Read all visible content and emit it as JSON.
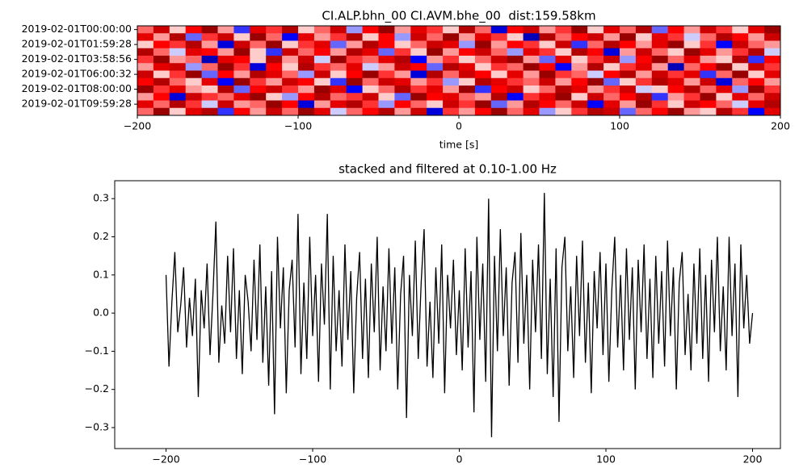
{
  "chart_data": [
    {
      "type": "heatmap",
      "title": "CI.ALP.bhn_00 CI.AVM.bhe_00  dist:159.58km",
      "xlabel": "time [s]",
      "colormap": "seismic",
      "clim": [
        -1,
        1
      ],
      "xlim": [
        -200,
        200
      ],
      "xticks": [
        {
          "value": -200,
          "label": "−200"
        },
        {
          "value": -100,
          "label": "−100"
        },
        0,
        100,
        200
      ],
      "categories": [
        "2019-02-01T00:00:00",
        null,
        "2019-02-01T01:59:28",
        null,
        "2019-02-01T03:58:56",
        null,
        "2019-02-01T06:00:32",
        null,
        "2019-02-01T08:00:00",
        null,
        "2019-02-01T09:59:28",
        null
      ],
      "matrix": [
        [
          0.3,
          0.7,
          0.1,
          0.5,
          0.9,
          0.2,
          -0.4,
          0.6,
          0.4,
          0.8,
          0.1,
          0.3,
          0.7,
          -0.2,
          0.5,
          0.9,
          0.2,
          0.6,
          0.4,
          0.1,
          0.8,
          0.3,
          -0.6,
          0.5,
          0.7,
          0.2,
          0.4,
          0.9,
          0.1,
          0.6,
          0.3,
          0.8,
          -0.3,
          0.5,
          0.2,
          0.7,
          0.4,
          0.1,
          0.6,
          0.9
        ],
        [
          0.6,
          0.2,
          0.8,
          -0.3,
          0.4,
          0.7,
          0.1,
          0.9,
          0.3,
          -0.5,
          0.6,
          0.2,
          0.4,
          0.8,
          0.1,
          0.5,
          -0.2,
          0.7,
          0.3,
          0.9,
          0.2,
          0.6,
          0.4,
          0.1,
          -0.7,
          0.8,
          0.3,
          0.5,
          0.7,
          0.2,
          0.9,
          0.1,
          0.6,
          0.4,
          -0.1,
          0.3,
          0.8,
          0.5,
          0.2,
          0.7
        ],
        [
          0.1,
          0.5,
          0.4,
          0.8,
          0.2,
          -0.6,
          0.7,
          0.3,
          0.9,
          0.1,
          0.4,
          0.6,
          -0.3,
          0.2,
          0.8,
          0.5,
          0.1,
          0.3,
          0.7,
          0.6,
          -0.2,
          0.9,
          0.2,
          0.5,
          0.4,
          0.1,
          0.7,
          -0.4,
          0.3,
          0.8,
          0.5,
          0.2,
          0.6,
          0.9,
          0.1,
          0.4,
          -0.5,
          0.7,
          0.3,
          0.2
        ],
        [
          0.8,
          0.3,
          -0.1,
          0.6,
          0.5,
          0.2,
          0.9,
          0.1,
          -0.4,
          0.7,
          0.3,
          0.5,
          0.2,
          0.8,
          0.6,
          -0.3,
          0.4,
          0.1,
          0.9,
          0.2,
          0.5,
          0.7,
          0.3,
          -0.2,
          0.6,
          0.4,
          0.1,
          0.8,
          0.5,
          -0.6,
          0.2,
          0.7,
          0.3,
          0.1,
          0.9,
          0.6,
          0.2,
          0.4,
          0.8,
          -0.1
        ],
        [
          0.4,
          0.9,
          0.2,
          0.3,
          -0.7,
          0.6,
          0.5,
          0.1,
          0.8,
          0.2,
          0.7,
          -0.1,
          0.9,
          0.4,
          0.3,
          0.6,
          0.8,
          -0.5,
          0.2,
          0.4,
          0.1,
          0.3,
          0.7,
          0.9,
          0.2,
          -0.3,
          0.6,
          0.1,
          0.4,
          0.7,
          -0.2,
          0.5,
          0.9,
          0.3,
          0.6,
          0.2,
          0.1,
          0.8,
          -0.4,
          0.5
        ],
        [
          0.2,
          0.6,
          0.7,
          -0.2,
          0.3,
          0.9,
          0.4,
          -0.6,
          0.5,
          0.1,
          0.8,
          0.4,
          0.3,
          0.6,
          -0.1,
          0.2,
          0.7,
          0.5,
          -0.3,
          0.8,
          0.6,
          0.1,
          0.4,
          0.3,
          0.9,
          0.5,
          -0.5,
          0.2,
          0.8,
          0.1,
          0.4,
          0.6,
          0.2,
          -0.7,
          0.3,
          0.5,
          0.9,
          0.1,
          0.7,
          0.4
        ],
        [
          0.7,
          0.1,
          0.4,
          0.9,
          -0.3,
          0.5,
          0.2,
          0.8,
          0.6,
          0.3,
          -0.2,
          0.7,
          0.1,
          0.5,
          0.9,
          0.4,
          0.2,
          -0.6,
          0.8,
          0.3,
          0.7,
          0.5,
          0.1,
          0.6,
          0.2,
          0.9,
          0.4,
          0.3,
          -0.1,
          0.5,
          0.8,
          0.2,
          0.7,
          0.4,
          0.6,
          -0.4,
          0.3,
          0.9,
          0.1,
          0.6
        ],
        [
          0.5,
          0.8,
          0.3,
          0.1,
          0.6,
          -0.5,
          0.9,
          0.4,
          0.2,
          0.7,
          0.5,
          0.1,
          -0.4,
          0.9,
          0.3,
          0.7,
          0.6,
          0.2,
          0.4,
          -0.2,
          0.1,
          0.8,
          0.6,
          0.4,
          0.3,
          0.7,
          0.2,
          0.5,
          0.9,
          -0.3,
          0.1,
          0.4,
          0.8,
          0.6,
          0.2,
          0.7,
          -0.6,
          0.3,
          0.5,
          0.2
        ],
        [
          0.9,
          0.4,
          0.6,
          0.2,
          0.1,
          0.8,
          -0.3,
          0.5,
          0.7,
          0.4,
          0.2,
          0.9,
          0.6,
          -0.5,
          0.1,
          0.3,
          0.8,
          0.4,
          0.6,
          0.2,
          0.9,
          -0.4,
          0.5,
          0.7,
          0.1,
          0.3,
          0.8,
          0.6,
          0.2,
          0.4,
          0.7,
          -0.1,
          0.1,
          0.5,
          0.8,
          0.3,
          0.6,
          -0.2,
          0.9,
          0.4
        ],
        [
          0.2,
          0.5,
          -0.6,
          0.7,
          0.4,
          0.3,
          0.6,
          0.9,
          0.1,
          -0.2,
          0.5,
          0.8,
          0.3,
          0.4,
          0.7,
          0.1,
          -0.3,
          0.9,
          0.5,
          0.6,
          0.3,
          0.2,
          0.8,
          -0.5,
          0.4,
          0.6,
          0.9,
          0.1,
          0.7,
          0.3,
          0.5,
          0.8,
          -0.4,
          0.2,
          0.4,
          0.9,
          0.1,
          0.6,
          0.3,
          0.7
        ],
        [
          0.6,
          0.3,
          0.8,
          0.4,
          -0.1,
          0.7,
          0.2,
          0.3,
          0.9,
          0.5,
          -0.6,
          0.2,
          0.6,
          0.8,
          0.4,
          -0.2,
          0.5,
          0.3,
          0.1,
          0.7,
          0.4,
          0.9,
          -0.3,
          0.2,
          0.8,
          0.5,
          0.3,
          0.7,
          -0.5,
          0.6,
          0.2,
          0.9,
          0.4,
          0.1,
          0.7,
          0.5,
          0.3,
          -0.1,
          0.6,
          0.8
        ],
        [
          0.3,
          0.9,
          0.1,
          0.6,
          0.8,
          -0.4,
          0.5,
          0.2,
          0.7,
          0.3,
          0.9,
          0.6,
          -0.1,
          0.3,
          0.5,
          0.8,
          0.2,
          0.7,
          -0.6,
          0.4,
          0.2,
          0.5,
          0.9,
          0.3,
          0.6,
          -0.2,
          0.1,
          0.4,
          0.8,
          0.7,
          -0.3,
          0.3,
          0.5,
          0.9,
          0.2,
          0.1,
          0.8,
          0.4,
          -0.5,
          0.6
        ]
      ]
    },
    {
      "type": "line",
      "title": "stacked and filtered at 0.10-1.00 Hz",
      "color": "#000000",
      "xlim": [
        -235,
        219
      ],
      "ylim": [
        -0.355,
        0.347
      ],
      "xticks": [
        {
          "value": -200,
          "label": "−200"
        },
        {
          "value": -100,
          "label": "−100"
        },
        0,
        100,
        200
      ],
      "yticks": [
        {
          "value": -0.3,
          "label": "−0.3"
        },
        {
          "value": -0.2,
          "label": "−0.2"
        },
        {
          "value": -0.1,
          "label": "−0.1"
        },
        {
          "value": 0,
          "label": "0.0"
        },
        0.1,
        0.2,
        0.3
      ],
      "x": [
        -200,
        -198,
        -196,
        -194,
        -192,
        -190,
        -188,
        -186,
        -184,
        -182,
        -180,
        -178,
        -176,
        -174,
        -172,
        -170,
        -168,
        -166,
        -164,
        -162,
        -160,
        -158,
        -156,
        -154,
        -152,
        -150,
        -148,
        -146,
        -144,
        -142,
        -140,
        -138,
        -136,
        -134,
        -132,
        -130,
        -128,
        -126,
        -124,
        -122,
        -120,
        -118,
        -116,
        -114,
        -112,
        -110,
        -108,
        -106,
        -104,
        -102,
        -100,
        -98,
        -96,
        -94,
        -92,
        -90,
        -88,
        -86,
        -84,
        -82,
        -80,
        -78,
        -76,
        -74,
        -72,
        -70,
        -68,
        -66,
        -64,
        -62,
        -60,
        -58,
        -56,
        -54,
        -52,
        -50,
        -48,
        -46,
        -44,
        -42,
        -40,
        -38,
        -36,
        -34,
        -32,
        -30,
        -28,
        -26,
        -24,
        -22,
        -20,
        -18,
        -16,
        -14,
        -12,
        -10,
        -8,
        -6,
        -4,
        -2,
        0,
        2,
        4,
        6,
        8,
        10,
        12,
        14,
        16,
        18,
        20,
        22,
        24,
        26,
        28,
        30,
        32,
        34,
        36,
        38,
        40,
        42,
        44,
        46,
        48,
        50,
        52,
        54,
        56,
        58,
        60,
        62,
        64,
        66,
        68,
        70,
        72,
        74,
        76,
        78,
        80,
        82,
        84,
        86,
        88,
        90,
        92,
        94,
        96,
        98,
        100,
        102,
        104,
        106,
        108,
        110,
        112,
        114,
        116,
        118,
        120,
        122,
        124,
        126,
        128,
        130,
        132,
        134,
        136,
        138,
        140,
        142,
        144,
        146,
        148,
        150,
        152,
        154,
        156,
        158,
        160,
        162,
        164,
        166,
        168,
        170,
        172,
        174,
        176,
        178,
        180,
        182,
        184,
        186,
        188,
        190,
        192,
        194,
        196,
        198,
        200
      ],
      "values": [
        0.1,
        -0.14,
        0.03,
        0.16,
        -0.05,
        0.02,
        0.12,
        -0.09,
        0.04,
        -0.06,
        0.09,
        -0.22,
        0.06,
        -0.04,
        0.13,
        -0.11,
        0.05,
        0.24,
        -0.13,
        0.02,
        -0.08,
        0.15,
        -0.05,
        0.17,
        -0.12,
        0.06,
        -0.16,
        0.1,
        0.03,
        -0.1,
        0.14,
        -0.07,
        0.18,
        -0.13,
        0.07,
        -0.19,
        0.11,
        -0.265,
        0.2,
        -0.04,
        0.12,
        -0.21,
        0.06,
        0.14,
        -0.09,
        0.26,
        -0.16,
        0.08,
        -0.12,
        0.2,
        -0.06,
        0.1,
        -0.18,
        0.13,
        -0.03,
        0.26,
        -0.2,
        0.15,
        -0.1,
        0.06,
        -0.14,
        0.18,
        -0.07,
        0.11,
        -0.21,
        0.04,
        0.16,
        -0.12,
        0.09,
        -0.17,
        0.13,
        -0.05,
        0.2,
        -0.15,
        0.07,
        -0.1,
        0.17,
        -0.08,
        0.12,
        -0.2,
        0.05,
        0.15,
        -0.275,
        0.1,
        -0.06,
        0.19,
        -0.12,
        0.08,
        0.22,
        -0.14,
        0.03,
        -0.17,
        0.12,
        -0.08,
        0.18,
        -0.21,
        0.1,
        -0.04,
        0.14,
        -0.11,
        0.06,
        -0.15,
        0.17,
        -0.09,
        0.11,
        -0.26,
        0.2,
        -0.07,
        0.13,
        -0.18,
        0.3,
        -0.325,
        0.15,
        -0.1,
        0.22,
        -0.06,
        0.12,
        -0.19,
        0.08,
        0.16,
        -0.13,
        0.21,
        -0.08,
        0.1,
        -0.2,
        0.14,
        -0.05,
        0.18,
        -0.12,
        0.315,
        -0.16,
        0.09,
        -0.22,
        0.17,
        -0.285,
        0.12,
        0.2,
        -0.1,
        0.07,
        -0.17,
        0.15,
        -0.06,
        0.19,
        -0.13,
        0.08,
        -0.21,
        0.11,
        -0.04,
        0.16,
        -0.11,
        0.13,
        -0.18,
        0.06,
        0.2,
        -0.09,
        0.1,
        -0.15,
        0.17,
        -0.07,
        0.12,
        -0.2,
        0.14,
        -0.05,
        0.18,
        -0.12,
        0.09,
        -0.17,
        0.15,
        -0.08,
        0.11,
        -0.14,
        0.19,
        -0.06,
        0.12,
        -0.2,
        0.08,
        0.16,
        -0.11,
        0.05,
        -0.15,
        0.13,
        -0.08,
        0.17,
        -0.12,
        0.1,
        -0.18,
        0.14,
        -0.05,
        0.2,
        -0.1,
        0.07,
        -0.15,
        0.2,
        -0.06,
        0.13,
        -0.22,
        0.18,
        -0.04,
        0.1,
        -0.08,
        0.0
      ]
    }
  ]
}
